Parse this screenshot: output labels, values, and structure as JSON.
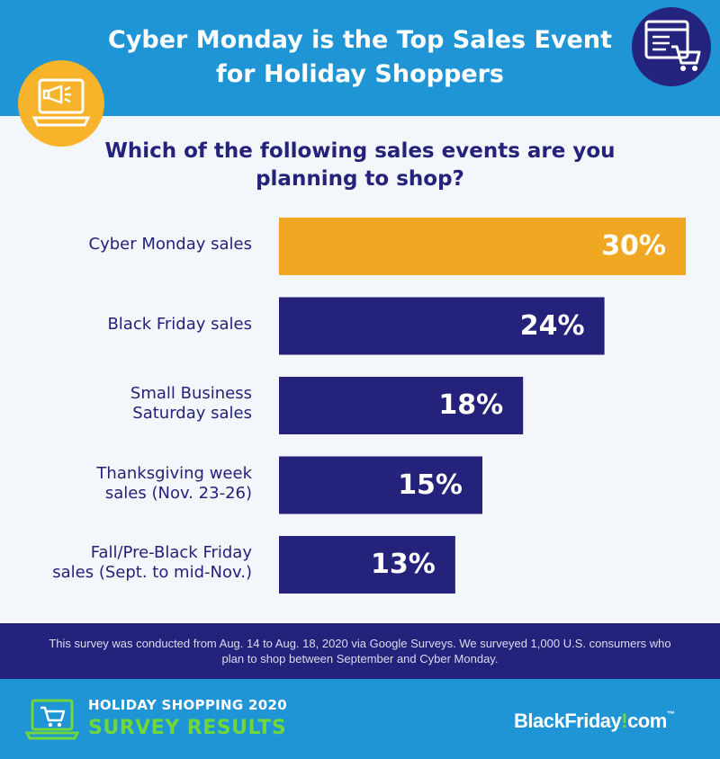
{
  "header": {
    "title": "Cyber Monday is the Top Sales Event for Holiday Shoppers",
    "left_icon": "laptop-megaphone-icon",
    "right_icon": "browser-cart-icon"
  },
  "question": "Which of the following sales events are you planning to shop?",
  "colors": {
    "header_bg": "#1f95d6",
    "highlight_bar": "#f0a822",
    "bar": "#24227a",
    "text": "#24227a",
    "accent_green": "#6fd63c"
  },
  "chart_data": {
    "type": "bar",
    "orientation": "horizontal",
    "categories": [
      "Cyber Monday sales",
      "Black Friday sales",
      "Small Business Saturday sales",
      "Thanksgiving week sales (Nov. 23-26)",
      "Fall/Pre-Black Friday sales (Sept. to mid-Nov.)"
    ],
    "category_lines": [
      [
        "Cyber Monday sales"
      ],
      [
        "Black Friday sales"
      ],
      [
        "Small Business",
        "Saturday sales"
      ],
      [
        "Thanksgiving week",
        "sales (Nov. 23-26)"
      ],
      [
        "Fall/Pre-Black Friday",
        "sales (Sept. to mid-Nov.)"
      ]
    ],
    "values": [
      30,
      24,
      18,
      15,
      13
    ],
    "value_labels": [
      "30%",
      "24%",
      "18%",
      "15%",
      "13%"
    ],
    "unit": "%",
    "xlim": [
      0,
      30
    ],
    "highlight_index": 0,
    "grid": false,
    "legend": "none"
  },
  "footnote": "This survey was conducted from Aug. 14 to Aug. 18, 2020 via Google Surveys. We surveyed 1,000 U.S. consumers who plan to shop between September and Cyber Monday.",
  "banner": {
    "icon": "laptop-cart-icon",
    "line1": "HOLIDAY SHOPPING 2020",
    "line2": "SURVEY RESULTS",
    "brand_a": "BlackFriday",
    "brand_b": "com",
    "brand_tm": "™"
  }
}
